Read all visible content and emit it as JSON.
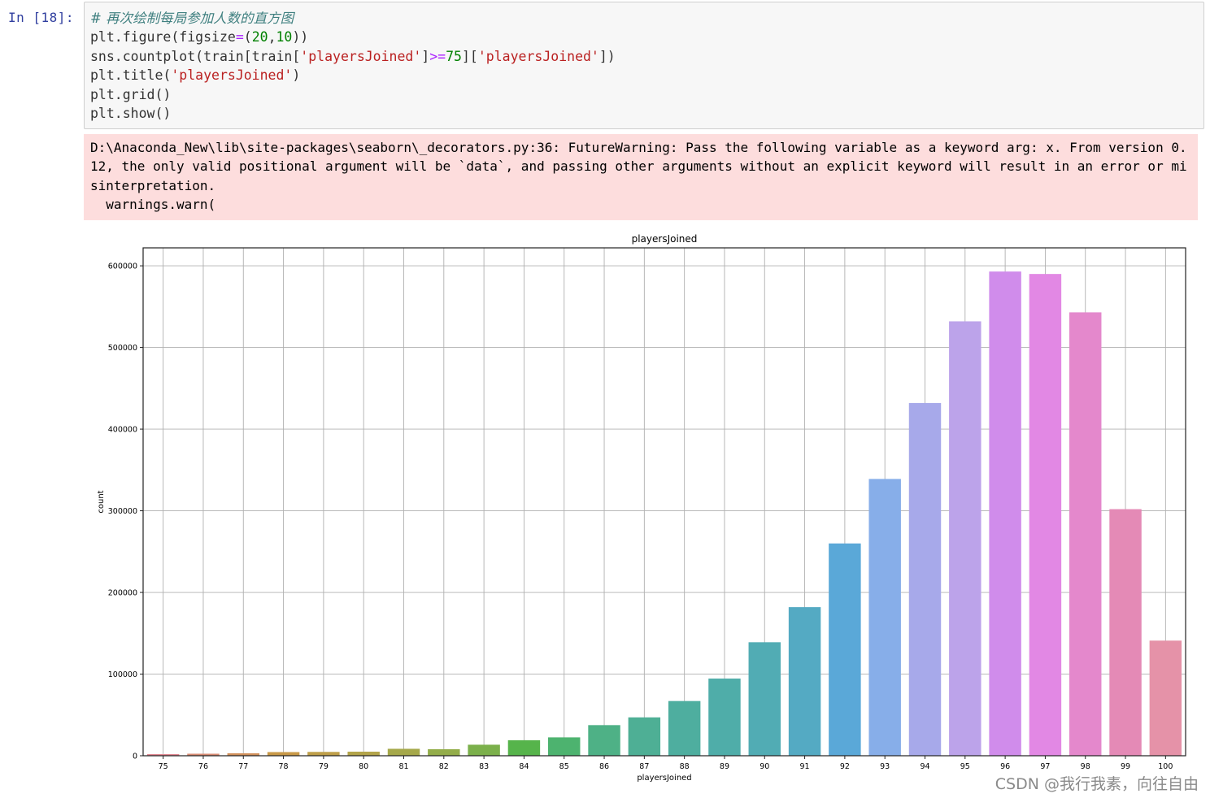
{
  "cell": {
    "prompt": "In  [18]:",
    "code": {
      "line1": "# 再次绘制每局参加人数的直方图",
      "line2_a": "plt.figure(figsize",
      "line2_b": "=",
      "line2_c": "(",
      "line2_d": "20",
      "line2_e": ",",
      "line2_f": "10",
      "line2_g": "))",
      "line3_a": "sns.countplot(train[train[",
      "line3_b": "'playersJoined'",
      "line3_c": "]",
      "line3_d": ">=",
      "line3_e": "75",
      "line3_f": "][",
      "line3_g": "'playersJoined'",
      "line3_h": "])",
      "line4_a": "plt.title(",
      "line4_b": "'playersJoined'",
      "line4_c": ")",
      "line5": "plt.grid()",
      "line6": "plt.show()"
    },
    "stderr": [
      "D:\\Anaconda_New\\lib\\site-packages\\seaborn\\_decorators.py:36: FutureWarning: Pass the following variable as a keyword arg: x. From version 0.",
      "12, the only valid positional argument will be `data`, and passing other arguments without an explicit keyword will result in an error or mi",
      "sinterpretation.",
      "  warnings.warn("
    ]
  },
  "chart_data": {
    "type": "bar",
    "title": "playersJoined",
    "xlabel": "playersJoined",
    "ylabel": "count",
    "categories": [
      "75",
      "76",
      "77",
      "78",
      "79",
      "80",
      "81",
      "82",
      "83",
      "84",
      "85",
      "86",
      "87",
      "88",
      "89",
      "90",
      "91",
      "92",
      "93",
      "94",
      "95",
      "96",
      "97",
      "98",
      "99",
      "100"
    ],
    "values": [
      2000,
      2500,
      3000,
      4500,
      4700,
      5000,
      8500,
      8000,
      13500,
      19000,
      22500,
      37500,
      47000,
      67000,
      94500,
      139000,
      182000,
      260000,
      339000,
      432000,
      532000,
      593000,
      590000,
      543000,
      302000,
      141000
    ],
    "yticks": [
      0,
      100000,
      200000,
      300000,
      400000,
      500000,
      600000
    ],
    "ytick_labels": [
      "0",
      "100000",
      "200000",
      "300000",
      "400000",
      "500000",
      "600000"
    ],
    "ylim": [
      0,
      622000
    ],
    "grid": true,
    "colors": [
      "#e28892",
      "#d98b73",
      "#d3915c",
      "#c99948",
      "#bf9f49",
      "#b3a44a",
      "#a5a84a",
      "#93ad4a",
      "#7bb04b",
      "#56b44b",
      "#4db36f",
      "#4eb186",
      "#4eaf95",
      "#4eae9f",
      "#4fada9",
      "#51acb4",
      "#54aac3",
      "#5aa8d8",
      "#87aee9",
      "#a7a9ea",
      "#bca3ea",
      "#d08ceb",
      "#e288e4",
      "#e488cc",
      "#e48ab6",
      "#e592a8"
    ]
  },
  "watermark": "CSDN @我行我素，向往自由"
}
